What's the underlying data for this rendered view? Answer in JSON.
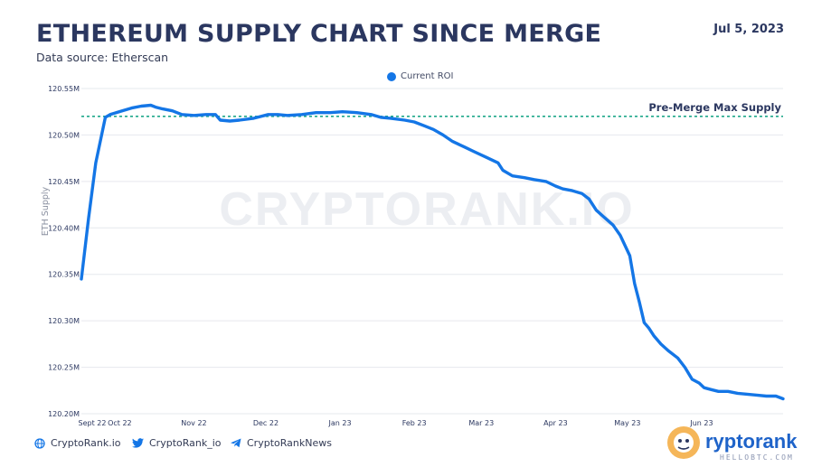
{
  "header": {
    "title": "ETHEREUM SUPPLY CHART SINCE MERGE",
    "subtitle": "Data source: Etherscan",
    "date": "Jul 5, 2023"
  },
  "watermark": "CRYPTORANK.IO",
  "footer": {
    "site": "CryptoRank.io",
    "twitter": "CryptoRank_io",
    "telegram": "CryptoRankNews",
    "logo_text": "ryptorank",
    "logo_subtext": "HELLOBTC.COM"
  },
  "colors": {
    "line": "#1476e6",
    "reference_line": "#1fa88a",
    "grid": "#e6e8ee",
    "title": "#2b3760"
  },
  "chart_data": {
    "type": "line",
    "title": "ETHEREUM SUPPLY CHART SINCE MERGE",
    "xlabel": "",
    "ylabel": "ETH Supply",
    "ylim": [
      120.2,
      120.55
    ],
    "yticks": [
      120.2,
      120.25,
      120.3,
      120.35,
      120.4,
      120.45,
      120.5,
      120.55
    ],
    "ytick_labels": [
      "120.20M",
      "120.25M",
      "120.30M",
      "120.35M",
      "120.40M",
      "120.45M",
      "120.50M",
      "120.55M"
    ],
    "xticks": [
      "Sept 22",
      "Oct 22",
      "Nov 22",
      "Dec 22",
      "Jan 23",
      "Feb 23",
      "Mar 23",
      "Apr 23",
      "May 23",
      "Jun 23"
    ],
    "grid": true,
    "legend_position": "top-center",
    "reference_line": {
      "label": "Pre-Merge Max Supply",
      "y": 120.52
    },
    "series": [
      {
        "name": "Current ROI",
        "x": [
          "2022-09-15",
          "2022-09-18",
          "2022-09-21",
          "2022-09-25",
          "2022-09-27",
          "2022-10-02",
          "2022-10-06",
          "2022-10-10",
          "2022-10-14",
          "2022-10-16",
          "2022-10-19",
          "2022-10-23",
          "2022-10-27",
          "2022-11-01",
          "2022-11-06",
          "2022-11-10",
          "2022-11-12",
          "2022-11-16",
          "2022-11-20",
          "2022-11-26",
          "2022-12-02",
          "2022-12-06",
          "2022-12-10",
          "2022-12-16",
          "2022-12-22",
          "2022-12-28",
          "2023-01-02",
          "2023-01-08",
          "2023-01-14",
          "2023-01-18",
          "2023-01-22",
          "2023-01-28",
          "2023-02-01",
          "2023-02-05",
          "2023-02-09",
          "2023-02-13",
          "2023-02-17",
          "2023-02-22",
          "2023-02-26",
          "2023-03-03",
          "2023-03-08",
          "2023-03-10",
          "2023-03-14",
          "2023-03-19",
          "2023-03-23",
          "2023-03-28",
          "2023-04-01",
          "2023-04-04",
          "2023-04-08",
          "2023-04-12",
          "2023-04-15",
          "2023-04-18",
          "2023-04-21",
          "2023-04-25",
          "2023-04-28",
          "2023-05-02",
          "2023-05-04",
          "2023-05-06",
          "2023-05-08",
          "2023-05-10",
          "2023-05-12",
          "2023-05-15",
          "2023-05-18",
          "2023-05-22",
          "2023-05-25",
          "2023-05-28",
          "2023-05-31",
          "2023-06-02",
          "2023-06-05",
          "2023-06-08",
          "2023-06-12",
          "2023-06-16",
          "2023-06-20",
          "2023-06-24",
          "2023-06-28",
          "2023-07-02",
          "2023-07-04",
          "2023-07-05"
        ],
        "y": [
          120.345,
          120.41,
          120.47,
          120.519,
          120.522,
          120.526,
          120.529,
          120.531,
          120.532,
          120.53,
          120.528,
          120.526,
          120.522,
          120.521,
          120.522,
          120.522,
          120.516,
          120.515,
          120.516,
          120.518,
          120.522,
          120.522,
          120.521,
          120.522,
          120.524,
          120.524,
          120.525,
          120.524,
          120.522,
          120.519,
          120.518,
          120.516,
          120.514,
          120.51,
          120.506,
          120.5,
          120.493,
          120.487,
          120.482,
          120.476,
          120.47,
          120.462,
          120.456,
          120.454,
          120.452,
          120.45,
          120.445,
          120.442,
          120.44,
          120.437,
          120.431,
          120.419,
          120.412,
          120.403,
          120.392,
          120.37,
          120.34,
          120.32,
          120.298,
          120.292,
          120.284,
          120.275,
          120.268,
          120.26,
          120.25,
          120.237,
          120.233,
          120.228,
          120.226,
          120.224,
          120.224,
          120.222,
          120.221,
          120.22,
          120.219,
          120.219,
          120.217,
          120.216
        ]
      }
    ]
  }
}
